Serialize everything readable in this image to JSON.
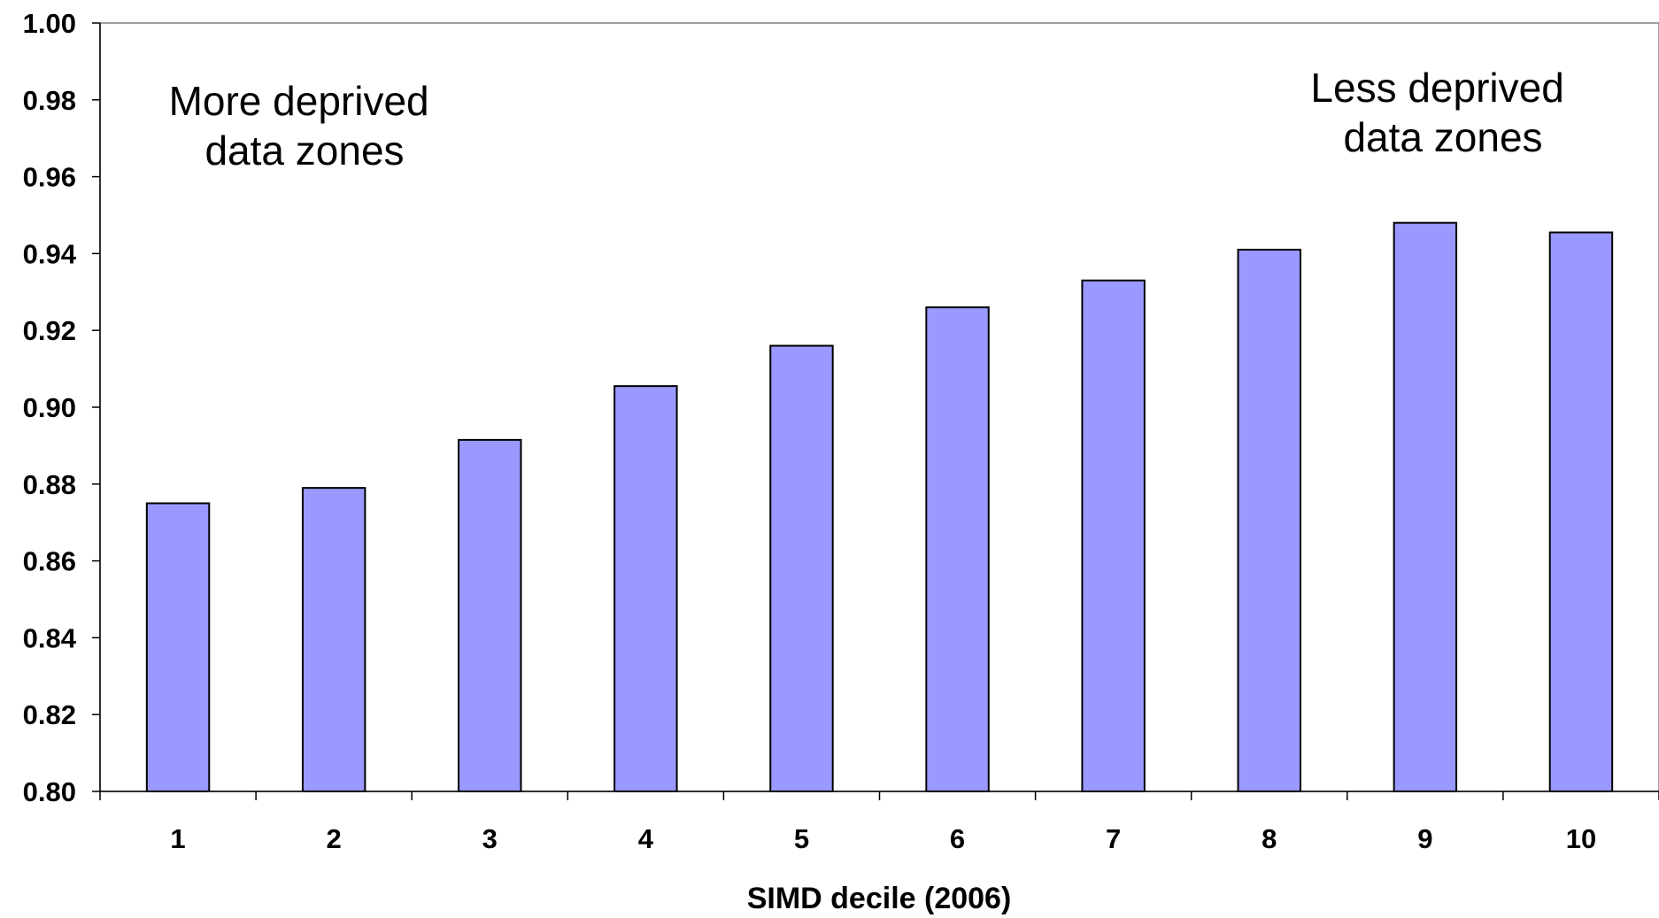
{
  "chart_data": {
    "type": "bar",
    "categories": [
      "1",
      "2",
      "3",
      "4",
      "5",
      "6",
      "7",
      "8",
      "9",
      "10"
    ],
    "values": [
      0.875,
      0.879,
      0.8915,
      0.9055,
      0.916,
      0.926,
      0.933,
      0.941,
      0.948,
      0.9455
    ],
    "title": "",
    "xlabel": "SIMD decile (2006)",
    "ylabel": "",
    "ylim": [
      0.8,
      1.0
    ],
    "yticks": [
      "0.80",
      "0.82",
      "0.84",
      "0.86",
      "0.88",
      "0.90",
      "0.92",
      "0.94",
      "0.96",
      "0.98",
      "1.00"
    ],
    "grid": false,
    "legend": "none",
    "bar_color": "#9999ff",
    "bar_edge_color": "#000000",
    "annotations": [
      {
        "lines": [
          "More deprived",
          "data zones"
        ],
        "placement": "top-left"
      },
      {
        "lines": [
          "Less deprived",
          "data zones"
        ],
        "placement": "top-right"
      }
    ]
  }
}
